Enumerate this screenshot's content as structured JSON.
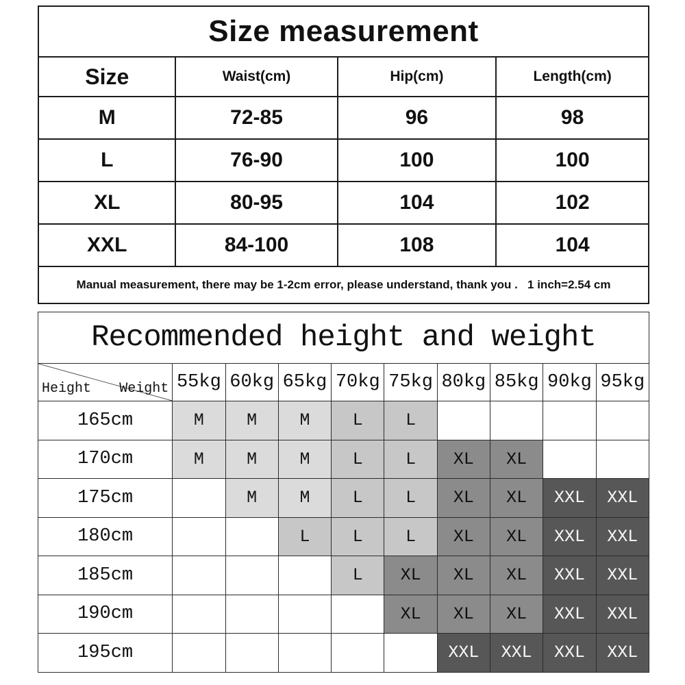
{
  "size_table": {
    "title": "Size measurement",
    "columns": [
      "Size",
      "Waist(cm)",
      "Hip(cm)",
      "Length(cm)"
    ],
    "rows": [
      {
        "size": "M",
        "waist": "72-85",
        "hip": "96",
        "length": "98"
      },
      {
        "size": "L",
        "waist": "76-90",
        "hip": "100",
        "length": "100"
      },
      {
        "size": "XL",
        "waist": "80-95",
        "hip": "104",
        "length": "102"
      },
      {
        "size": "XXL",
        "waist": "84-100",
        "hip": "108",
        "length": "104"
      }
    ],
    "note": "Manual measurement, there may be 1-2cm error, please understand, thank you .   1 inch=2.54 cm"
  },
  "recommend_table": {
    "title": "Recommended height and weight",
    "corner": {
      "row_label": "Height",
      "col_label": "Weight"
    },
    "weight_columns": [
      "55kg",
      "60kg",
      "65kg",
      "70kg",
      "75kg",
      "80kg",
      "85kg",
      "90kg",
      "95kg"
    ],
    "rows": [
      {
        "height": "165cm",
        "cells": [
          "M",
          "M",
          "M",
          "L",
          "L",
          "",
          "",
          "",
          ""
        ]
      },
      {
        "height": "170cm",
        "cells": [
          "M",
          "M",
          "M",
          "L",
          "L",
          "XL",
          "XL",
          "",
          ""
        ]
      },
      {
        "height": "175cm",
        "cells": [
          "",
          "M",
          "M",
          "L",
          "L",
          "XL",
          "XL",
          "XXL",
          "XXL"
        ]
      },
      {
        "height": "180cm",
        "cells": [
          "",
          "",
          "L",
          "L",
          "L",
          "XL",
          "XL",
          "XXL",
          "XXL"
        ]
      },
      {
        "height": "185cm",
        "cells": [
          "",
          "",
          "",
          "L",
          "XL",
          "XL",
          "XL",
          "XXL",
          "XXL"
        ]
      },
      {
        "height": "190cm",
        "cells": [
          "",
          "",
          "",
          "",
          "XL",
          "XL",
          "XL",
          "XXL",
          "XXL"
        ]
      },
      {
        "height": "195cm",
        "cells": [
          "",
          "",
          "",
          "",
          "",
          "XXL",
          "XXL",
          "XXL",
          "XXL"
        ]
      }
    ],
    "cell_colors": {
      "M": {
        "bg": "#dbdbdb",
        "text": "#141414"
      },
      "L": {
        "bg": "#c7c7c7",
        "text": "#141414"
      },
      "XL": {
        "bg": "#8b8b8b",
        "text": "#101010"
      },
      "XXL": {
        "bg": "#575757",
        "text": "#f7f7f7"
      },
      "empty": {
        "bg": "#ffffff",
        "text": "#141414"
      }
    }
  }
}
